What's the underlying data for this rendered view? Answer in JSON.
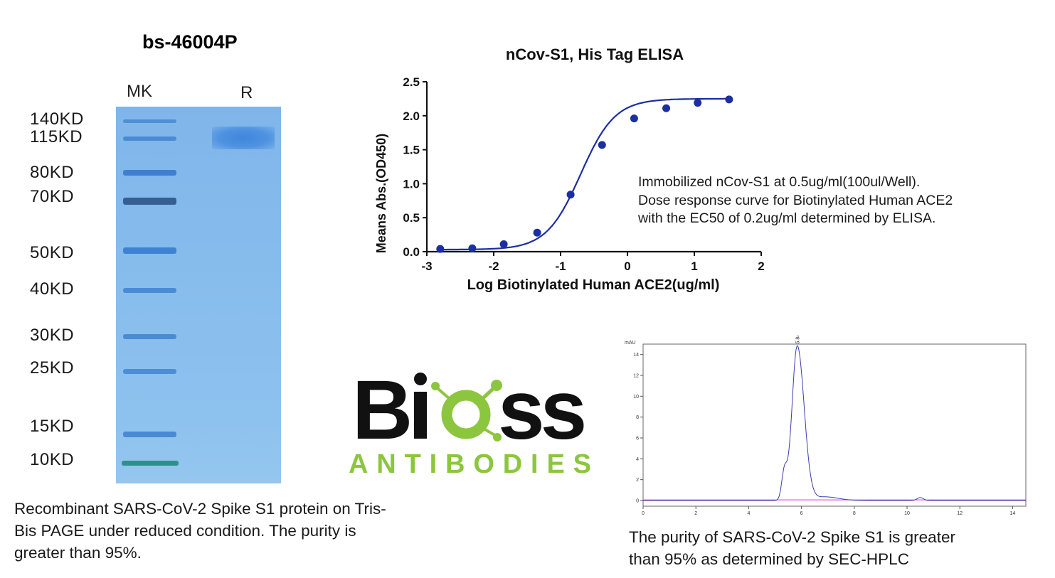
{
  "product_id": "bs-46004P",
  "gel": {
    "lanes": [
      "MK",
      "R"
    ],
    "markers": [
      "140KD",
      "115KD",
      "80KD",
      "70KD",
      "50KD",
      "40KD",
      "30KD",
      "25KD",
      "15KD",
      "10KD"
    ],
    "caption": "Recombinant SARS-CoV-2 Spike S1 protein on Tris-\nBis PAGE under reduced condition. The purity is\ngreater than 95%."
  },
  "logo": {
    "wordmark": "Bioss",
    "subtitle": "ANTIBODIES",
    "colors": {
      "dark": "#111111",
      "green": "#8cc63f"
    }
  },
  "elisa": {
    "note": "Immobilized nCov-S1 at 0.5ug/ml(100ul/Well).\nDose response curve for Biotinylated Human ACE2\nwith the EC50 of 0.2ug/ml determined by ELISA."
  },
  "hplc": {
    "caption": "The purity of SARS-CoV-2 Spike S1 is greater\nthan 95% as determined by SEC-HPLC"
  },
  "chart_data": [
    {
      "type": "scatter",
      "title": "nCov-S1, His Tag ELISA",
      "xlabel": "Log Biotinylated Human ACE2(ug/ml)",
      "ylabel": "Means Abs.(OD450)",
      "xlim": [
        -3,
        2
      ],
      "ylim": [
        0,
        2.5
      ],
      "xticks": [
        "-3",
        "-2",
        "-1",
        "0",
        "1",
        "2"
      ],
      "yticks": [
        "0.0",
        "0.5",
        "1.0",
        "1.5",
        "2.0",
        "2.5"
      ],
      "fit_line": true,
      "color": "#1c2fa0",
      "points": [
        {
          "x": -2.8,
          "y": 0.04
        },
        {
          "x": -2.32,
          "y": 0.05
        },
        {
          "x": -1.85,
          "y": 0.11
        },
        {
          "x": -1.35,
          "y": 0.28
        },
        {
          "x": -0.85,
          "y": 0.84
        },
        {
          "x": -0.38,
          "y": 1.57
        },
        {
          "x": 0.1,
          "y": 1.96
        },
        {
          "x": 0.58,
          "y": 2.11
        },
        {
          "x": 1.05,
          "y": 2.19
        },
        {
          "x": 1.52,
          "y": 2.24
        }
      ]
    },
    {
      "type": "line",
      "ylabel": "mAU",
      "xlim": [
        0,
        14.5
      ],
      "ylim": [
        0,
        15
      ],
      "xticks": [
        "0",
        "2",
        "4",
        "6",
        "8",
        "10",
        "12",
        "14"
      ],
      "yticks": [
        "0",
        "2",
        "4",
        "6",
        "8",
        "10",
        "12",
        "14"
      ],
      "peak_label": "5.843",
      "trace_color": "#3b3bb0",
      "baseline_color": "#d23cc8"
    }
  ]
}
